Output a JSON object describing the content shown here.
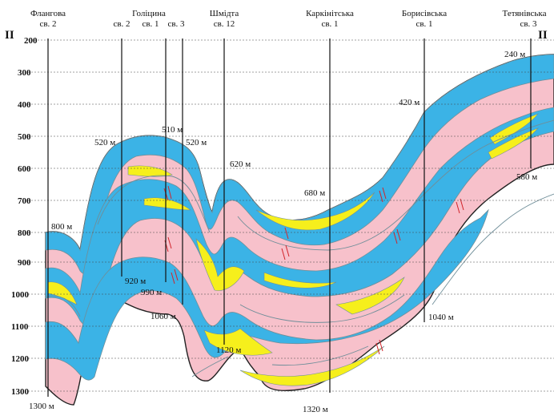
{
  "profile": {
    "left_label": "II",
    "right_label": "II"
  },
  "depth_axis": {
    "unit": "м",
    "ticks": [
      "200",
      "300",
      "400",
      "500",
      "600",
      "700",
      "800",
      "900",
      "1000",
      "1100",
      "1200",
      "1300"
    ]
  },
  "wells": [
    {
      "id": "flangova-2",
      "name": "Флангова",
      "number": "св. 2",
      "top": "800 м",
      "bottom": "1300 м"
    },
    {
      "id": "golitsyna-2",
      "name": "Голіцина",
      "number": "св. 2",
      "top": "520 м",
      "bottom": "920 м"
    },
    {
      "id": "golitsyna-1",
      "name": "",
      "number": "св. 1",
      "top": "510 м",
      "bottom": "990 м"
    },
    {
      "id": "golitsyna-3",
      "name": "",
      "number": "св. 3",
      "top": "520 м",
      "bottom": "1060 м"
    },
    {
      "id": "shmidta-12",
      "name": "Шмідта",
      "number": "св. 12",
      "top": "620 м",
      "bottom": "1120 м"
    },
    {
      "id": "karkinitska-1",
      "name": "Каркінітська",
      "number": "св. 1",
      "top": "680 м",
      "bottom": "1320 м"
    },
    {
      "id": "borysivska-1",
      "name": "Борисівська",
      "number": "св. 1",
      "top": "420 м",
      "bottom": "1040 м"
    },
    {
      "id": "tetyanivska-3",
      "name": "Тетянівська",
      "number": "св. 3",
      "top": "240 м",
      "bottom": "580 м"
    }
  ],
  "colors": {
    "blue_layer": "#3bb3e6",
    "pink_layer": "#f7c1cb",
    "yellow_layer": "#f6ef1c",
    "grey_boundary": "#6f8e99",
    "fault": "#d2232a"
  }
}
